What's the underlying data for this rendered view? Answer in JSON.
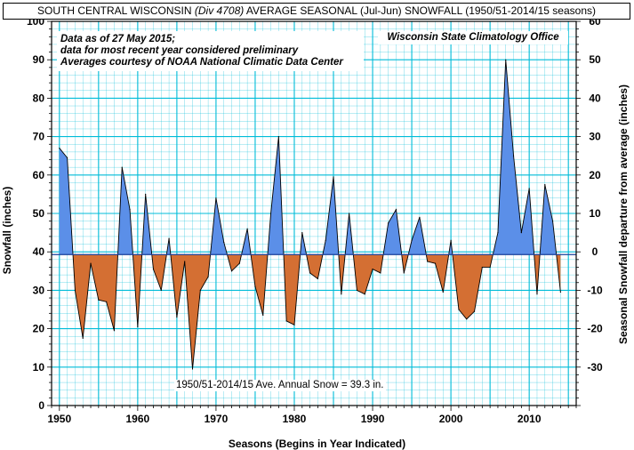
{
  "title": {
    "part1": "SOUTH CENTRAL WISCONSIN ",
    "part2": "(Div 4708)",
    "part3": " AVERAGE SEASONAL (Jul-Jun) SNOWFALL (1950/51-2014/15 seasons)"
  },
  "notes": {
    "line1": "Data as of 27 May 2015;",
    "line2": "data for most recent year considered preliminary",
    "line3": "Averages courtesy of NOAA National Climatic Data Center"
  },
  "source": "Wisconsin State Climatology Office",
  "average_label": "1950/51-2014/15 Ave. Annual Snow = 39.3 in.",
  "colors": {
    "above_average": "#5b8fe8",
    "below_average": "#d46f33",
    "grid": "#00bcd8",
    "axis": "#000000"
  },
  "chart_data": {
    "type": "area",
    "title": "SOUTH CENTRAL WISCONSIN (Div 4708) AVERAGE SEASONAL (Jul-Jun) SNOWFALL (1950/51-2014/15 seasons)",
    "xlabel": "Seasons (Begins in Year Indicated)",
    "ylabel": "Snowfall  (inches)",
    "y2label": "Seasonal Snowfall departure from average (inches)",
    "xlim": [
      1949,
      2016
    ],
    "ylim": [
      0,
      100
    ],
    "y2lim": [
      -40,
      60
    ],
    "xticks": [
      1950,
      1960,
      1970,
      1980,
      1990,
      2000,
      2010
    ],
    "yticks": [
      0,
      10,
      20,
      30,
      40,
      50,
      60,
      70,
      80,
      90,
      100
    ],
    "y2ticks": [
      -30,
      -20,
      -10,
      0,
      10,
      20,
      30,
      40,
      50,
      60
    ],
    "average": 39.3,
    "grid": true,
    "x": [
      1950,
      1951,
      1952,
      1953,
      1954,
      1955,
      1956,
      1957,
      1958,
      1959,
      1960,
      1961,
      1962,
      1963,
      1964,
      1965,
      1966,
      1967,
      1968,
      1969,
      1970,
      1971,
      1972,
      1973,
      1974,
      1975,
      1976,
      1977,
      1978,
      1979,
      1980,
      1981,
      1982,
      1983,
      1984,
      1985,
      1986,
      1987,
      1988,
      1989,
      1990,
      1991,
      1992,
      1993,
      1994,
      1995,
      1996,
      1997,
      1998,
      1999,
      2000,
      2001,
      2002,
      2003,
      2004,
      2005,
      2006,
      2007,
      2008,
      2009,
      2010,
      2011,
      2012,
      2013,
      2014
    ],
    "values": [
      67,
      64.5,
      30,
      17.5,
      37,
      27.5,
      27,
      19.5,
      62,
      51,
      20.5,
      55,
      35.5,
      30,
      43.5,
      23,
      37.5,
      9.5,
      30,
      33.5,
      54,
      42.5,
      35,
      37,
      46,
      31,
      23.5,
      50,
      70,
      22,
      21,
      45,
      34.5,
      33,
      43,
      59.5,
      29,
      50,
      30,
      29,
      35.5,
      34.5,
      47.5,
      51,
      34.5,
      43,
      49,
      37.5,
      37,
      29.5,
      43,
      25,
      22.5,
      24.5,
      36,
      36,
      45,
      90,
      65,
      45,
      56.5,
      29,
      57.5,
      48,
      29.5
    ]
  }
}
